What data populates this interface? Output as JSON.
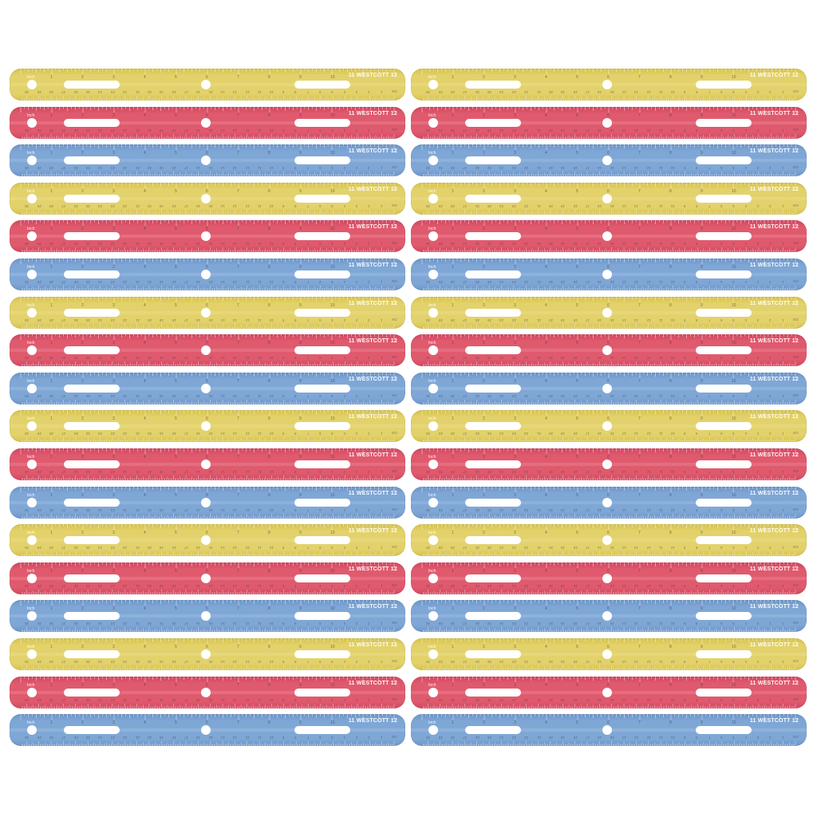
{
  "product": {
    "brand": "WESTCOTT",
    "brand_mark": "W",
    "inch_label": "Inch",
    "cm_label": "CM",
    "end_inch_number": "12"
  },
  "colors": {
    "yellow": "#e3d26b",
    "red": "#e05a6e",
    "blue": "#7fa7d6",
    "yellow_edge": "#d6c24c",
    "red_edge": "#d24760",
    "blue_edge": "#6d95c8"
  },
  "columns": 2,
  "rows": 18,
  "color_sequence": [
    "yellow",
    "red",
    "blue"
  ],
  "inch_numbers": [
    "1",
    "2",
    "3",
    "4",
    "5",
    "6",
    "7",
    "8",
    "9",
    "10",
    "11"
  ],
  "cm_numbers": [
    "1",
    "2",
    "3",
    "4",
    "5",
    "6",
    "7",
    "8",
    "9",
    "10",
    "11",
    "12",
    "13",
    "14",
    "15",
    "16",
    "17",
    "18",
    "19",
    "20",
    "21",
    "22",
    "23",
    "24",
    "25",
    "26",
    "27",
    "28",
    "29",
    "30"
  ]
}
